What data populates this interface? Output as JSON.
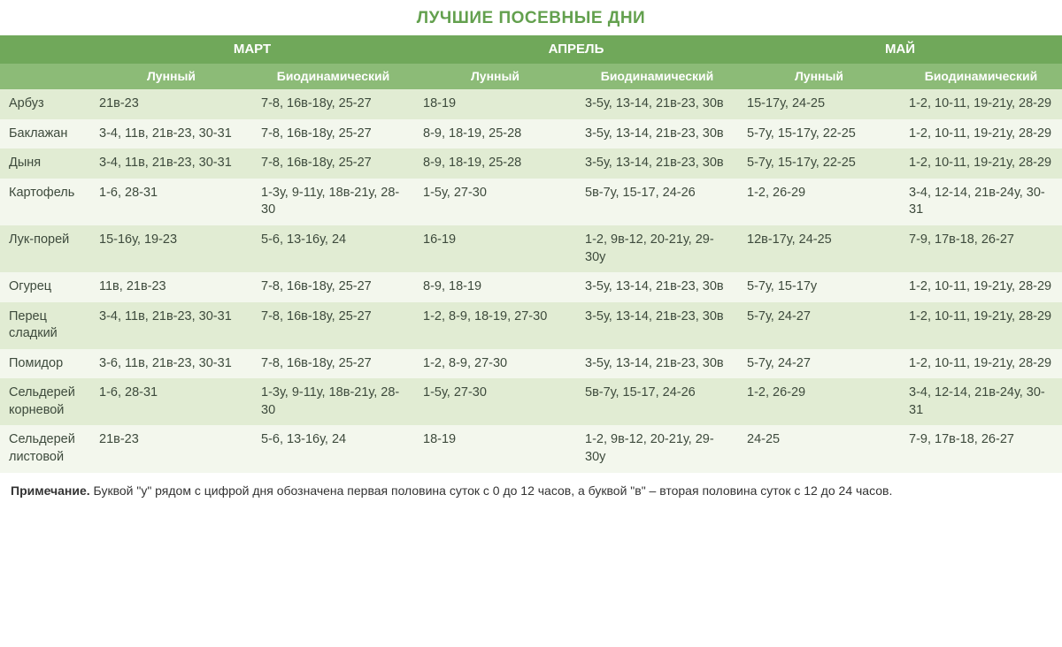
{
  "title": "ЛУЧШИЕ ПОСЕВНЫЕ ДНИ",
  "title_color": "#63a04e",
  "colors": {
    "header_month_bg": "#70a85a",
    "header_sub_bg": "#8cbb77",
    "header_text": "#ffffff",
    "row_odd_bg": "#e1ecd3",
    "row_even_bg": "#f3f7ed",
    "body_text": "#3d4a3c",
    "footnote_text": "#333333"
  },
  "months": [
    "МАРТ",
    "АПРЕЛЬ",
    "МАЙ"
  ],
  "subheaders": [
    "Лунный",
    "Биодинамический"
  ],
  "crops": [
    {
      "name": "Арбуз",
      "cells": [
        "21в-23",
        "7-8, 16в-18у, 25-27",
        "18-19",
        "3-5у, 13-14, 21в-23, 30в",
        "15-17у, 24-25",
        "1-2, 10-11, 19-21у, 28-29"
      ]
    },
    {
      "name": "Баклажан",
      "cells": [
        "3-4, 11в, 21в-23, 30-31",
        "7-8, 16в-18у, 25-27",
        "8-9, 18-19, 25-28",
        "3-5у, 13-14, 21в-23, 30в",
        "5-7у, 15-17у, 22-25",
        "1-2, 10-11, 19-21у, 28-29"
      ]
    },
    {
      "name": "Дыня",
      "cells": [
        "3-4, 11в, 21в-23, 30-31",
        "7-8, 16в-18у, 25-27",
        "8-9, 18-19, 25-28",
        "3-5у, 13-14, 21в-23, 30в",
        "5-7у, 15-17у, 22-25",
        "1-2, 10-11, 19-21у, 28-29"
      ]
    },
    {
      "name": "Картофель",
      "cells": [
        "1-6, 28-31",
        "1-3у, 9-11у, 18в-21у, 28-30",
        "1-5у, 27-30",
        "5в-7у, 15-17, 24-26",
        "1-2, 26-29",
        "3-4, 12-14, 21в-24у, 30-31"
      ]
    },
    {
      "name": "Лук-порей",
      "cells": [
        "15-16у, 19-23",
        "5-6, 13-16у, 24",
        "16-19",
        "1-2, 9в-12, 20-21у, 29-30у",
        "12в-17у, 24-25",
        "7-9, 17в-18, 26-27"
      ]
    },
    {
      "name": "Огурец",
      "cells": [
        "11в, 21в-23",
        "7-8, 16в-18у, 25-27",
        "8-9, 18-19",
        "3-5у, 13-14, 21в-23, 30в",
        "5-7у, 15-17у",
        "1-2, 10-11, 19-21у, 28-29"
      ]
    },
    {
      "name": "Перец сладкий",
      "cells": [
        "3-4, 11в, 21в-23, 30-31",
        "7-8, 16в-18у, 25-27",
        "1-2, 8-9, 18-19, 27-30",
        "3-5у, 13-14, 21в-23, 30в",
        "5-7у, 24-27",
        "1-2, 10-11, 19-21у, 28-29"
      ]
    },
    {
      "name": "Помидор",
      "cells": [
        "3-6, 11в, 21в-23, 30-31",
        "7-8, 16в-18у, 25-27",
        "1-2, 8-9, 27-30",
        "3-5у, 13-14, 21в-23, 30в",
        "5-7у, 24-27",
        "1-2, 10-11, 19-21у, 28-29"
      ]
    },
    {
      "name": "Сельдерей корневой",
      "cells": [
        "1-6, 28-31",
        "1-3у, 9-11у, 18в-21у, 28-30",
        "1-5у, 27-30",
        "5в-7у, 15-17, 24-26",
        "1-2, 26-29",
        "3-4, 12-14, 21в-24у, 30-31"
      ]
    },
    {
      "name": "Сельдерей листовой",
      "cells": [
        "21в-23",
        "5-6, 13-16у, 24",
        "18-19",
        "1-2, 9в-12, 20-21у, 29-30у",
        "24-25",
        "7-9, 17в-18, 26-27"
      ]
    }
  ],
  "footnote": {
    "label": "Примечание.",
    "text": " Буквой \"у\" рядом с цифрой дня обозначена первая половина суток с 0 до 12 часов, а  буквой \"в\"  – вторая половина суток с  12 до 24 часов."
  },
  "layout": {
    "crop_col_width_pct": 8.5,
    "data_col_width_pct": 15.25,
    "title_fontsize": 19,
    "body_fontsize": 14.5,
    "header_fontsize": 15,
    "subheader_fontsize": 14
  }
}
